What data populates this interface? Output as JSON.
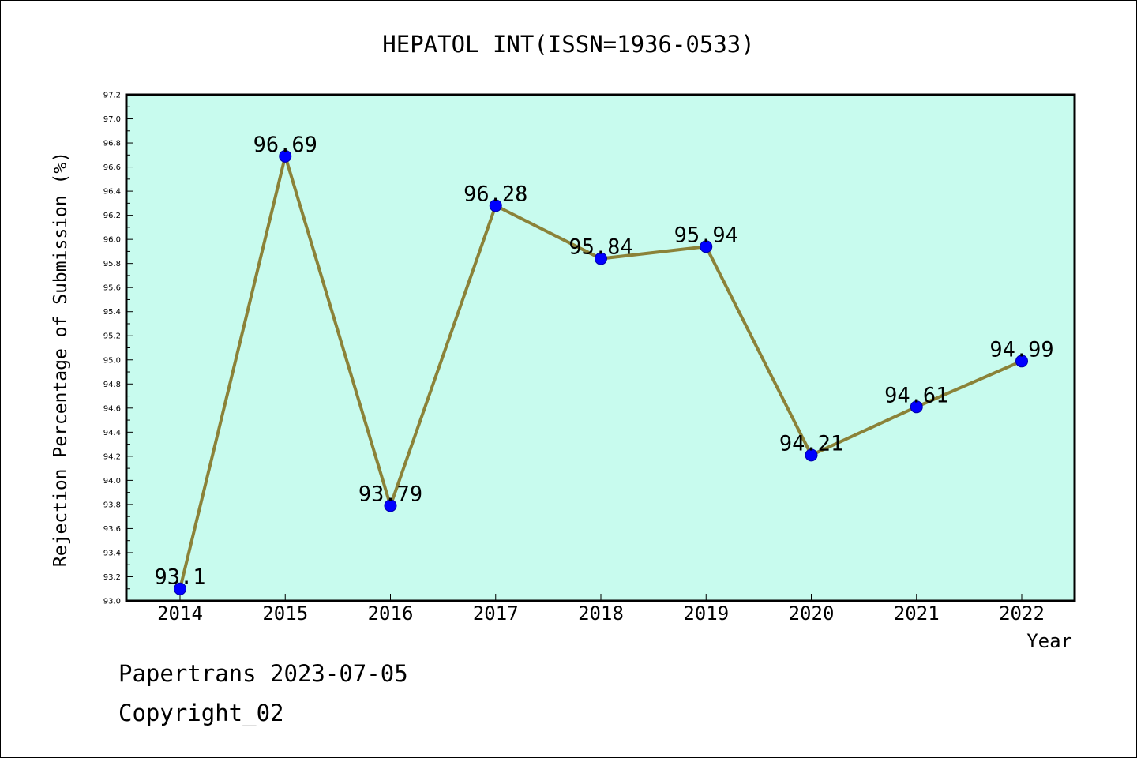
{
  "chart_data": {
    "type": "line",
    "title": "HEPATOL INT(ISSN=1936-0533)",
    "xlabel": "Year",
    "ylabel": "Rejection Percentage of Submission (%)",
    "categories": [
      "2014",
      "2015",
      "2016",
      "2017",
      "2018",
      "2019",
      "2020",
      "2021",
      "2022"
    ],
    "values": [
      93.1,
      96.69,
      93.79,
      96.28,
      95.84,
      95.94,
      94.21,
      94.61,
      94.99
    ],
    "data_labels": [
      "93.1",
      "96.69",
      "93.79",
      "96.28",
      "95.84",
      "95.94",
      "94.21",
      "94.61",
      "94.99"
    ],
    "ylim": [
      93.0,
      97.2
    ],
    "yticks": [
      "93.0",
      "93.2",
      "93.4",
      "93.6",
      "93.8",
      "94.0",
      "94.2",
      "94.4",
      "94.6",
      "94.8",
      "95.0",
      "95.2",
      "95.4",
      "95.6",
      "95.8",
      "96.0",
      "96.2",
      "96.4",
      "96.6",
      "96.8",
      "97.0",
      "97.2"
    ],
    "grid": false,
    "colors": {
      "plot_bg": "#c8fbee",
      "line": "#8b8238",
      "marker": "#0000ff"
    }
  },
  "footer": {
    "line1": "Papertrans 2023-07-05",
    "line2": "Copyright_02"
  }
}
